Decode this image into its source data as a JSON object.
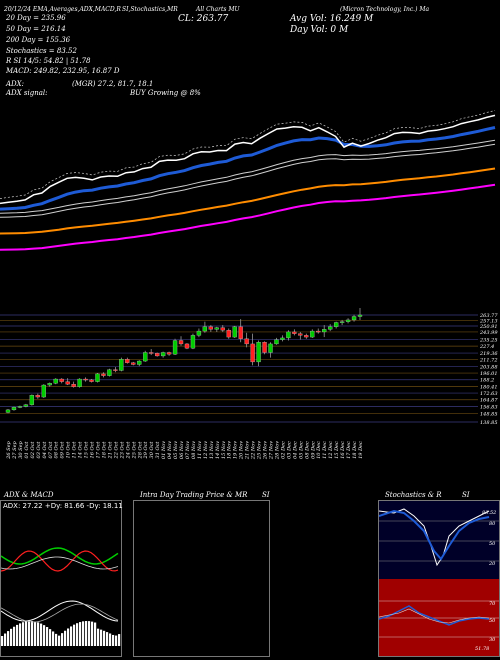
{
  "header": {
    "top_left": "20/12/24 EMA,Averages,ADX,MACD,R",
    "top_mid": "SI,Stochastics,MR",
    "top_mid2": "All Charts MU",
    "top_right": "(Micron Technology, Inc.) Ma",
    "close_label": "CL: 263.77",
    "avg_vol_label": "Avg Vol: 16.249 M",
    "day_vol_label": "Day Vol: 0  M"
  },
  "indicators": {
    "ema20": "20  Day = 235.96",
    "ema50": "50  Day = 216.14",
    "ema200": "200  Day = 155.36",
    "stochastics": "Stochastics = 83.52",
    "rsi": "R      SI 14/5: 54.82  | 51.78",
    "macd": "MACD: 249.82, 232.95, 16.87 D",
    "adx": "ADX:",
    "adx_values": "(MGR) 27.2, 81.7, 18.1",
    "adx_signal": "ADX  signal:",
    "adx_signal_value": "BUY Growing @ 8%"
  },
  "colors": {
    "ema20": "#ffffff",
    "ema50": "#1e5bd6",
    "ema100": "#cfcfcf",
    "ema200": "#ff8c00",
    "ema300": "#ff00ff",
    "up": "#00cc00",
    "down": "#ff2020",
    "background": "#000000"
  },
  "price_levels": [
    "263.77",
    "257.13",
    "250.91",
    "243.99",
    "235.25",
    "227.4",
    "219.36",
    "211.72",
    "203.88",
    "196.01",
    "188.2",
    "180.41",
    "172.63",
    "164.87",
    "156.83",
    "148.85",
    "138.85"
  ],
  "chart_data": {
    "type": "candlestick",
    "dates": [
      "26 Sep",
      "27 Sep",
      "30 Sep",
      "01 Oct",
      "02 Oct",
      "03 Oct",
      "04 Oct",
      "07 Oct",
      "08 Oct",
      "09 Oct",
      "10 Oct",
      "11 Oct",
      "14 Oct",
      "15 Oct",
      "16 Oct",
      "17 Oct",
      "18 Oct",
      "21 Oct",
      "22 Oct",
      "23 Oct",
      "24 Oct",
      "25 Oct",
      "28 Oct",
      "29 Oct",
      "30 Oct",
      "31 Oct",
      "01 Nov",
      "04 Nov",
      "05 Nov",
      "06 Nov",
      "07 Nov",
      "08 Nov",
      "11 Nov",
      "12 Nov",
      "13 Nov",
      "14 Nov",
      "15 Nov",
      "18 Nov",
      "19 Nov",
      "20 Nov",
      "21 Nov",
      "22 Nov",
      "25 Nov",
      "26 Nov",
      "27 Nov",
      "28 Nov",
      "02 Dec",
      "03 Dec",
      "04 Dec",
      "05 Dec",
      "08 Dec",
      "09 Dec",
      "10 Dec",
      "11 Dec",
      "12 Dec",
      "15 Dec",
      "16 Dec",
      "17 Dec",
      "18 Dec",
      "19 Dec"
    ],
    "ohlc": [
      [
        150,
        154,
        149,
        153
      ],
      [
        153,
        157,
        152,
        156
      ],
      [
        156,
        158,
        155,
        157
      ],
      [
        157,
        160,
        156,
        159
      ],
      [
        159,
        171,
        158,
        170
      ],
      [
        170,
        172,
        166,
        168
      ],
      [
        168,
        183,
        167,
        182
      ],
      [
        182,
        185,
        180,
        184
      ],
      [
        184,
        190,
        183,
        189
      ],
      [
        189,
        190,
        184,
        186
      ],
      [
        186,
        190,
        182,
        183
      ],
      [
        183,
        186,
        179,
        180
      ],
      [
        180,
        190,
        179,
        189
      ],
      [
        189,
        191,
        186,
        188
      ],
      [
        188,
        189,
        185,
        186
      ],
      [
        186,
        196,
        185,
        195
      ],
      [
        195,
        197,
        191,
        193
      ],
      [
        193,
        201,
        192,
        200
      ],
      [
        200,
        203,
        197,
        199
      ],
      [
        199,
        214,
        198,
        212
      ],
      [
        212,
        214,
        207,
        208
      ],
      [
        208,
        209,
        205,
        206
      ],
      [
        206,
        211,
        204,
        210
      ],
      [
        210,
        222,
        209,
        220
      ],
      [
        220,
        224,
        217,
        219
      ],
      [
        219,
        220,
        215,
        216
      ],
      [
        216,
        221,
        214,
        220
      ],
      [
        220,
        221,
        216,
        218
      ],
      [
        218,
        236,
        217,
        234
      ],
      [
        234,
        239,
        228,
        230
      ],
      [
        230,
        231,
        224,
        225
      ],
      [
        225,
        242,
        224,
        240
      ],
      [
        240,
        248,
        238,
        245
      ],
      [
        245,
        256,
        243,
        250
      ],
      [
        250,
        252,
        244,
        247
      ],
      [
        247,
        250,
        244,
        249
      ],
      [
        249,
        252,
        244,
        246
      ],
      [
        246,
        248,
        236,
        238
      ],
      [
        238,
        251,
        237,
        250
      ],
      [
        250,
        259,
        232,
        236
      ],
      [
        236,
        243,
        226,
        230
      ],
      [
        230,
        242,
        205,
        209
      ],
      [
        209,
        234,
        204,
        232
      ],
      [
        232,
        233,
        218,
        220
      ],
      [
        220,
        232,
        214,
        230
      ],
      [
        230,
        237,
        229,
        235
      ],
      [
        235,
        240,
        233,
        237
      ],
      [
        237,
        246,
        234,
        244
      ],
      [
        244,
        247,
        240,
        242
      ],
      [
        242,
        244,
        235,
        240
      ],
      [
        240,
        242,
        236,
        238
      ],
      [
        238,
        247,
        237,
        245
      ],
      [
        245,
        248,
        242,
        244
      ],
      [
        244,
        252,
        238,
        247
      ],
      [
        247,
        253,
        245,
        250
      ],
      [
        250,
        256,
        248,
        255
      ],
      [
        255,
        258,
        252,
        256
      ],
      [
        256,
        260,
        254,
        258
      ],
      [
        258,
        264,
        256,
        262
      ],
      [
        262,
        272,
        258,
        263.77
      ]
    ],
    "ylim": [
      138.85,
      263.77
    ]
  },
  "panels": {
    "adx_macd_title": "ADX  & MACD",
    "intraday_title": "Intra  Day Trading Price  & MR",
    "intraday_si": "SI",
    "stoch_title": "Stochastics & R",
    "stoch_si": "SI",
    "adx_readout": "ADX: 27.22  +Dy: 81.66  -Dy: 18.11",
    "stoch_value": "83.52",
    "stoch_levels": [
      "80",
      "50",
      "20"
    ],
    "rsi_levels": [
      "70",
      "50",
      "30"
    ],
    "rsi_value": "51.78"
  }
}
